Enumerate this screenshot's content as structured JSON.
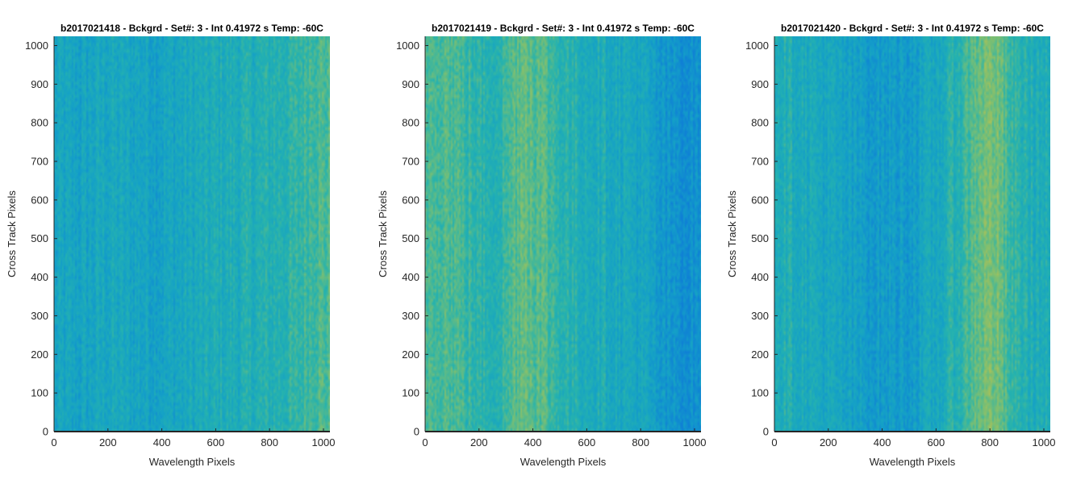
{
  "chart_data": [
    {
      "type": "heatmap",
      "title": "b2017021418 - Bckgrd - Set#: 3 - Int 0.41972 s Temp: -60C",
      "xlabel": "Wavelength Pixels",
      "ylabel": "Cross Track Pixels",
      "xlim": [
        0,
        1024
      ],
      "ylim": [
        0,
        1024
      ],
      "xticks": [
        0,
        200,
        400,
        600,
        800,
        1000
      ],
      "yticks": [
        0,
        100,
        200,
        300,
        400,
        500,
        600,
        700,
        800,
        900,
        1000
      ],
      "xtick_labels": [
        "0",
        "200",
        "400",
        "600",
        "800",
        "1000"
      ],
      "ytick_labels": [
        "0",
        "100",
        "200",
        "300",
        "400",
        "500",
        "600",
        "700",
        "800",
        "900",
        "1000"
      ],
      "colormap": [
        "#0f7fd6",
        "#14a0c8",
        "#26b3ae",
        "#7cbf72",
        "#c5c24a"
      ],
      "column_intensity_profile": {
        "x": [
          0,
          100,
          200,
          300,
          400,
          500,
          600,
          700,
          800,
          900,
          960,
          1024
        ],
        "level": [
          0.3,
          0.3,
          0.35,
          0.32,
          0.3,
          0.35,
          0.4,
          0.42,
          0.45,
          0.5,
          0.62,
          0.6
        ]
      }
    },
    {
      "type": "heatmap",
      "title": "b2017021419 - Bckgrd - Set#: 3 - Int 0.41972 s Temp: -60C",
      "xlabel": "Wavelength Pixels",
      "ylabel": "Cross Track Pixels",
      "xlim": [
        0,
        1024
      ],
      "ylim": [
        0,
        1024
      ],
      "xticks": [
        0,
        200,
        400,
        600,
        800,
        1000
      ],
      "yticks": [
        0,
        100,
        200,
        300,
        400,
        500,
        600,
        700,
        800,
        900,
        1000
      ],
      "xtick_labels": [
        "0",
        "200",
        "400",
        "600",
        "800",
        "1000"
      ],
      "ytick_labels": [
        "0",
        "100",
        "200",
        "300",
        "400",
        "500",
        "600",
        "700",
        "800",
        "900",
        "1000"
      ],
      "colormap": [
        "#0f7fd6",
        "#14a0c8",
        "#26b3ae",
        "#7cbf72",
        "#c5c24a"
      ],
      "column_intensity_profile": {
        "x": [
          0,
          60,
          120,
          200,
          280,
          360,
          440,
          520,
          600,
          700,
          800,
          880,
          960,
          1024
        ],
        "level": [
          0.6,
          0.65,
          0.6,
          0.48,
          0.5,
          0.72,
          0.62,
          0.48,
          0.42,
          0.38,
          0.32,
          0.18,
          0.14,
          0.14
        ]
      }
    },
    {
      "type": "heatmap",
      "title": "b2017021420 - Bckgrd - Set#: 3 - Int 0.41972 s Temp: -60C",
      "xlabel": "Wavelength Pixels",
      "ylabel": "Cross Track Pixels",
      "xlim": [
        0,
        1024
      ],
      "ylim": [
        0,
        1024
      ],
      "xticks": [
        0,
        200,
        400,
        600,
        800,
        1000
      ],
      "yticks": [
        0,
        100,
        200,
        300,
        400,
        500,
        600,
        700,
        800,
        900,
        1000
      ],
      "xtick_labels": [
        "0",
        "200",
        "400",
        "600",
        "800",
        "1000"
      ],
      "ytick_labels": [
        "0",
        "100",
        "200",
        "300",
        "400",
        "500",
        "600",
        "700",
        "800",
        "900",
        "1000"
      ],
      "colormap": [
        "#0f7fd6",
        "#14a0c8",
        "#26b3ae",
        "#7cbf72",
        "#c5c24a"
      ],
      "column_intensity_profile": {
        "x": [
          0,
          100,
          200,
          300,
          400,
          500,
          600,
          700,
          760,
          820,
          880,
          960,
          1024
        ],
        "level": [
          0.45,
          0.4,
          0.32,
          0.26,
          0.22,
          0.24,
          0.35,
          0.52,
          0.72,
          0.75,
          0.52,
          0.42,
          0.4
        ]
      }
    }
  ]
}
